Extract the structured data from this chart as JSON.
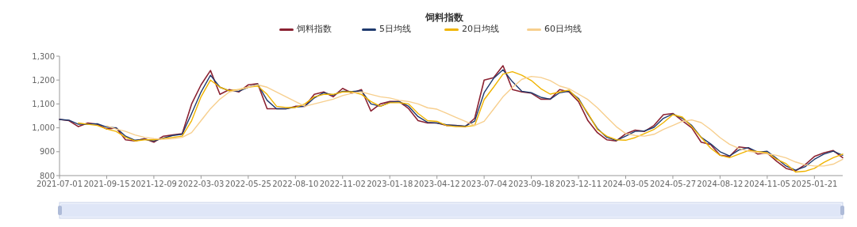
{
  "chart_data": {
    "type": "line",
    "title": "饲料指数",
    "legend": "top",
    "grid": false,
    "marker": "none",
    "line_style": "solid",
    "categories": [
      "2021-07-01",
      null,
      null,
      null,
      null,
      "2021-09-15",
      null,
      null,
      null,
      null,
      "2021-12-09",
      null,
      null,
      null,
      null,
      "2022-03-03",
      null,
      null,
      null,
      null,
      "2022-05-25",
      null,
      null,
      null,
      null,
      "2022-08-10",
      null,
      null,
      null,
      null,
      "2022-11-02",
      null,
      null,
      null,
      null,
      "2023-01-18",
      null,
      null,
      null,
      null,
      "2023-04-12",
      null,
      null,
      null,
      null,
      "2023-07-04",
      null,
      null,
      null,
      null,
      "2023-09-18",
      null,
      null,
      null,
      null,
      "2023-12-11",
      null,
      null,
      null,
      null,
      "2024-03-05",
      null,
      null,
      null,
      null,
      "2024-05-27",
      null,
      null,
      null,
      null,
      "2024-08-12",
      null,
      null,
      null,
      null,
      "2024-11-05",
      null,
      null,
      null,
      null,
      "2025-01-21",
      null,
      null,
      null
    ],
    "ylim": [
      800,
      1300
    ],
    "yticks": [
      800,
      900,
      {
        "value": 1000,
        "label": "1,000"
      },
      {
        "value": 1100,
        "label": "1,100"
      },
      {
        "value": 1200,
        "label": "1,200"
      },
      {
        "value": 1300,
        "label": "1,300"
      }
    ],
    "series": [
      {
        "name": "饲料指数",
        "color": "#8b2232",
        "values": [
          1035,
          1030,
          1005,
          1020,
          1015,
          995,
          1000,
          950,
          945,
          955,
          940,
          965,
          970,
          975,
          1100,
          1180,
          1240,
          1140,
          1160,
          1150,
          1180,
          1185,
          1080,
          1080,
          1080,
          1090,
          1090,
          1140,
          1150,
          1130,
          1165,
          1145,
          1160,
          1070,
          1100,
          1110,
          1110,
          1080,
          1030,
          1020,
          1020,
          1010,
          1010,
          1005,
          1040,
          1200,
          1210,
          1260,
          1160,
          1150,
          1145,
          1120,
          1120,
          1160,
          1150,
          1110,
          1030,
          980,
          950,
          945,
          975,
          990,
          985,
          1010,
          1055,
          1060,
          1030,
          1000,
          940,
          930,
          885,
          880,
          920,
          915,
          890,
          895,
          860,
          830,
          820,
          845,
          880,
          895,
          905,
          875
        ]
      },
      {
        "name": "5日均线",
        "color": "#1f3a6e",
        "values": [
          1035,
          1032,
          1015,
          1015,
          1017,
          1003,
          1000,
          965,
          948,
          952,
          945,
          957,
          968,
          973,
          1060,
          1150,
          1220,
          1170,
          1155,
          1153,
          1170,
          1183,
          1115,
          1080,
          1080,
          1087,
          1090,
          1125,
          1147,
          1137,
          1153,
          1152,
          1155,
          1100,
          1090,
          1107,
          1110,
          1090,
          1047,
          1023,
          1020,
          1013,
          1010,
          1007,
          1028,
          1147,
          1207,
          1243,
          1193,
          1153,
          1147,
          1128,
          1120,
          1147,
          1153,
          1123,
          1057,
          997,
          960,
          947,
          965,
          985,
          987,
          1002,
          1040,
          1058,
          1040,
          1010,
          960,
          933,
          900,
          882,
          907,
          917,
          898,
          902,
          872,
          840,
          823,
          837,
          868,
          890,
          902,
          885
        ]
      },
      {
        "name": "20日均线",
        "color": "#f0b400",
        "values": [
          null,
          null,
          1020,
          1015,
          1010,
          995,
          985,
          960,
          945,
          950,
          950,
          955,
          960,
          965,
          1030,
          1130,
          1200,
          1170,
          1155,
          1160,
          1170,
          1175,
          1140,
          1090,
          1085,
          1085,
          1100,
          1130,
          1140,
          1140,
          1150,
          1150,
          1140,
          1110,
          1090,
          1105,
          1105,
          1100,
          1060,
          1030,
          1027,
          1010,
          1005,
          1005,
          1010,
          1118,
          1170,
          1225,
          1235,
          1220,
          1198,
          1164,
          1141,
          1150,
          1158,
          1118,
          1061,
          993,
          965,
          950,
          948,
          959,
          976,
          993,
          1022,
          1055,
          1045,
          1005,
          960,
          915,
          885,
          875,
          890,
          905,
          900,
          895,
          868,
          850,
          815,
          818,
          830,
          855,
          875,
          890
        ]
      },
      {
        "name": "60日均线",
        "color": "#f7cf8e",
        "values": [
          null,
          null,
          null,
          null,
          null,
          1008,
          995,
          985,
          970,
          960,
          955,
          952,
          955,
          960,
          980,
          1030,
          1080,
          1120,
          1150,
          1160,
          1170,
          1180,
          1170,
          1150,
          1130,
          1110,
          1090,
          1100,
          1110,
          1120,
          1135,
          1145,
          1150,
          1140,
          1130,
          1125,
          1115,
          1110,
          1100,
          1084,
          1078,
          1061,
          1044,
          1027,
          1010,
          1027,
          1078,
          1130,
          1169,
          1203,
          1215,
          1211,
          1198,
          1175,
          1164,
          1141,
          1118,
          1084,
          1044,
          1005,
          976,
          968,
          965,
          973,
          993,
          1010,
          1027,
          1033,
          1022,
          993,
          959,
          931,
          914,
          902,
          897,
          891,
          885,
          874,
          857,
          845,
          840,
          840,
          848,
          868
        ]
      }
    ]
  }
}
